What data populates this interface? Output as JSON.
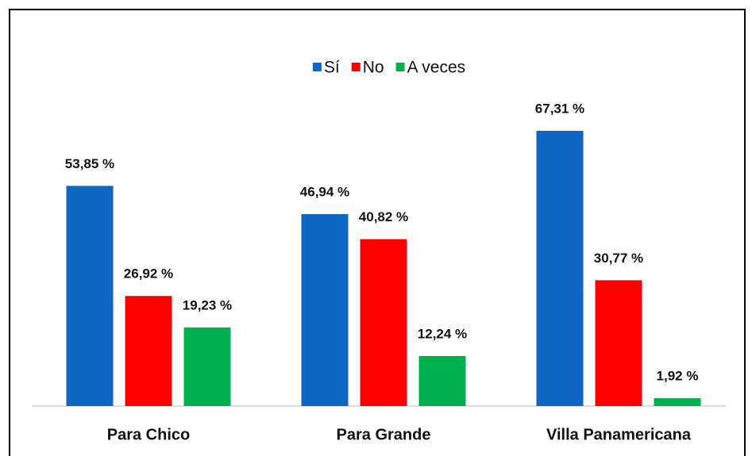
{
  "chart_data": {
    "type": "bar",
    "categories": [
      "Para Chico",
      "Para Grande",
      "Villa Panamericana"
    ],
    "series": [
      {
        "name": "Sí",
        "color": "#0f65c0",
        "values": [
          53.85,
          46.94,
          67.31
        ],
        "value_labels": [
          "53,85 %",
          "46,94 %",
          "67,31 %"
        ]
      },
      {
        "name": "No",
        "color": "#ff0000",
        "values": [
          26.92,
          40.82,
          30.77
        ],
        "value_labels": [
          "26,92 %",
          "40,82 %",
          "30,77 %"
        ]
      },
      {
        "name": "A veces",
        "color": "#00b050",
        "values": [
          19.23,
          12.24,
          1.92
        ],
        "value_labels": [
          "19,23 %",
          "12,24 %",
          "1,92 %"
        ]
      }
    ],
    "legend": "top"
  }
}
